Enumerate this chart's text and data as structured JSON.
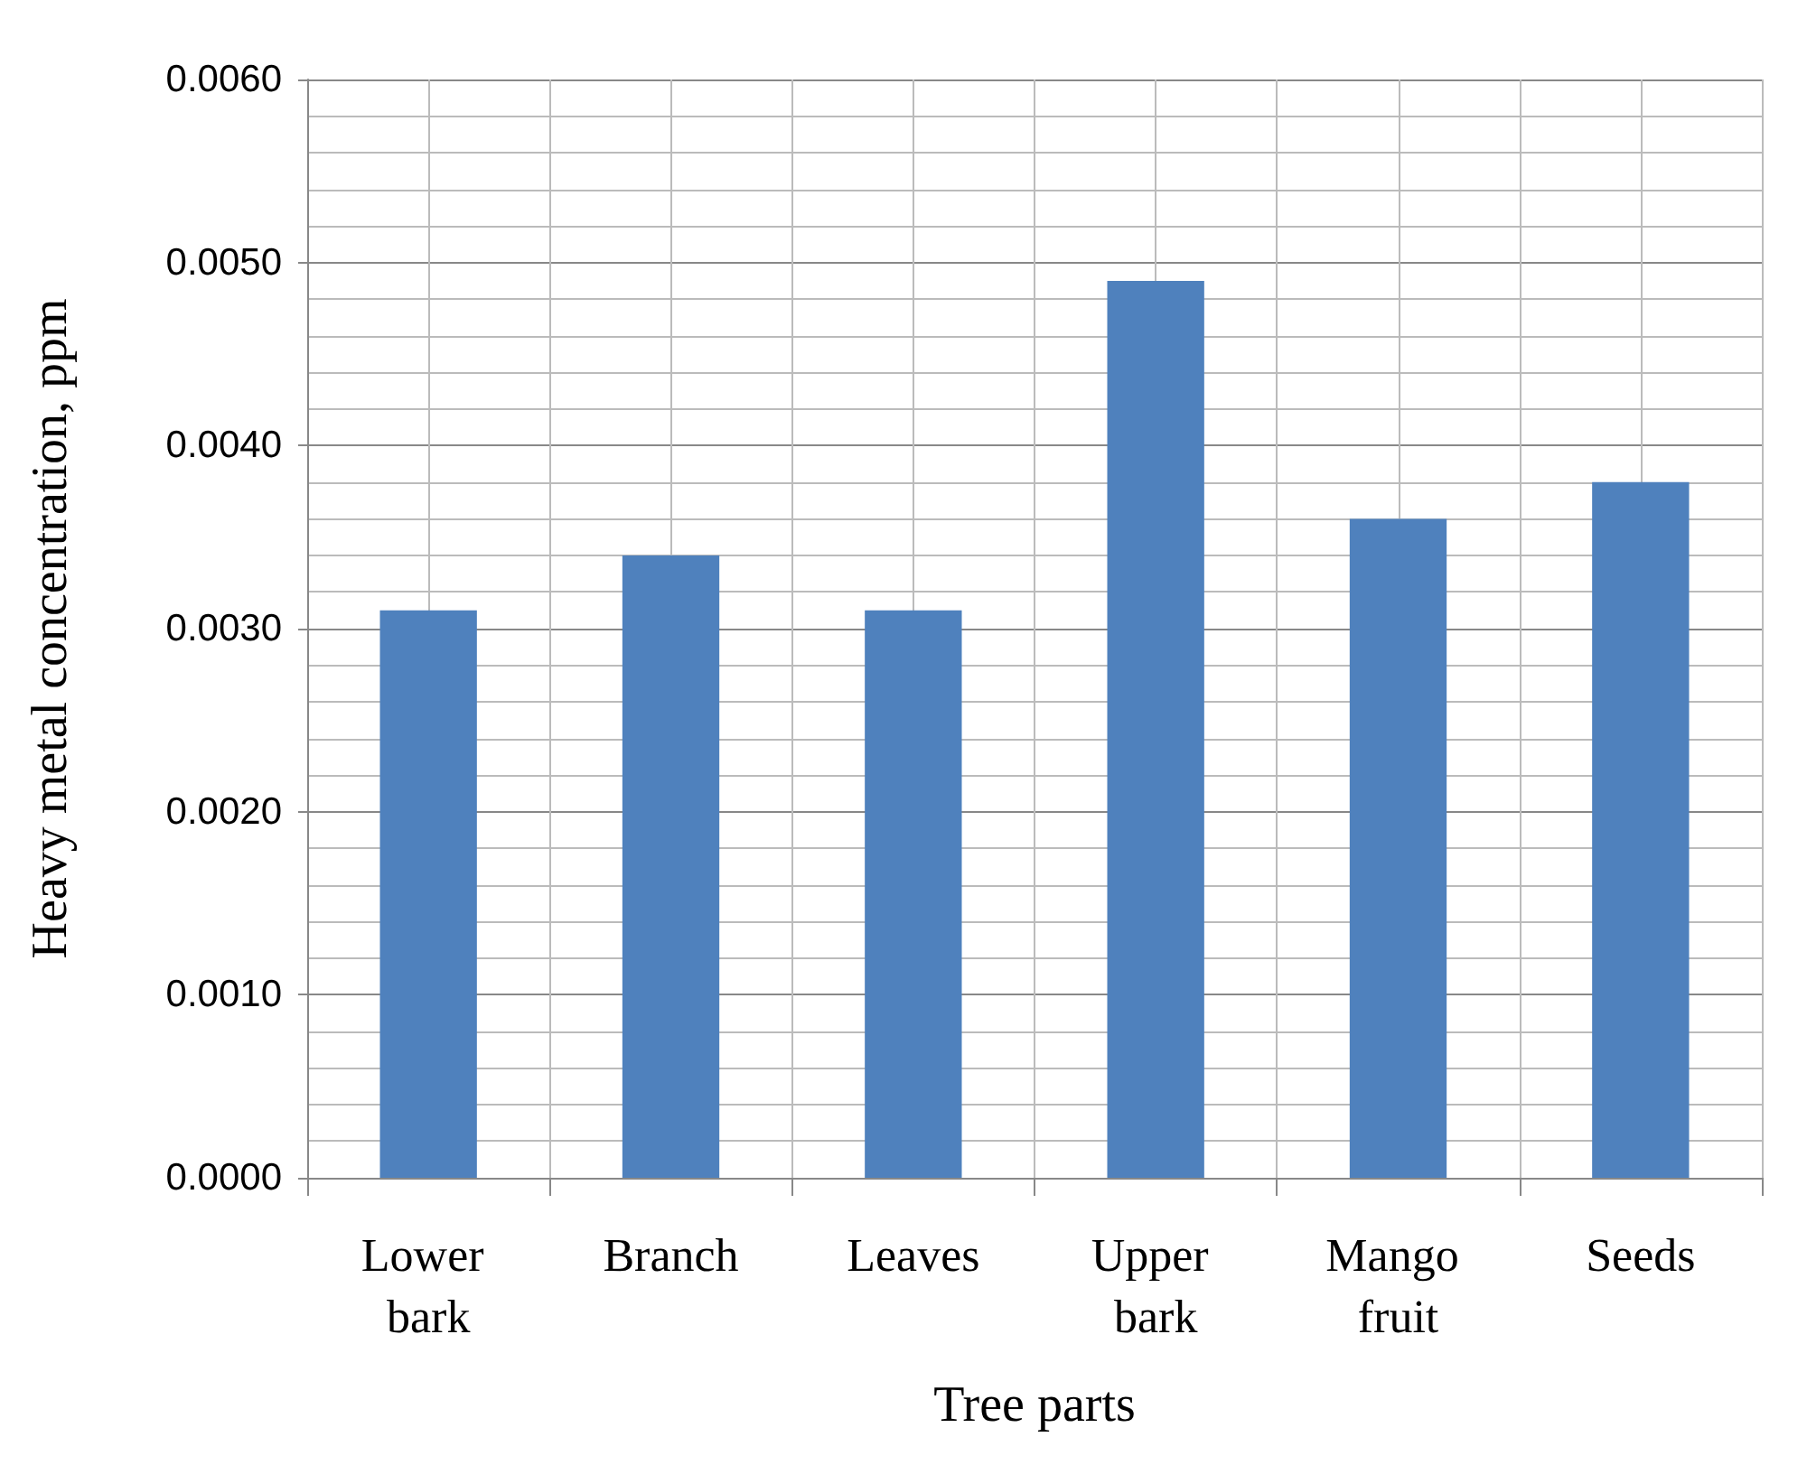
{
  "chart_data": {
    "type": "bar",
    "xlabel": "Tree parts",
    "ylabel": "Heavy metal concentration, ppm",
    "categories": [
      "Lower bark",
      "Branch",
      "Leaves",
      "Upper bark",
      "Mango fruit",
      "Seeds"
    ],
    "values": [
      0.0031,
      0.0034,
      0.0031,
      0.0049,
      0.0036,
      0.0038
    ],
    "color": "#4f81bd",
    "ylim": [
      0,
      0.006
    ],
    "yticks": [
      {
        "value": 0,
        "label": "0.0000"
      },
      {
        "value": 0.001,
        "label": "0.0010"
      },
      {
        "value": 0.002,
        "label": "0.0020"
      },
      {
        "value": 0.003,
        "label": "0.0030"
      },
      {
        "value": 0.004,
        "label": "0.0040"
      },
      {
        "value": 0.005,
        "label": "0.0050"
      },
      {
        "value": 0.006,
        "label": "0.0060"
      }
    ],
    "grid": true
  }
}
